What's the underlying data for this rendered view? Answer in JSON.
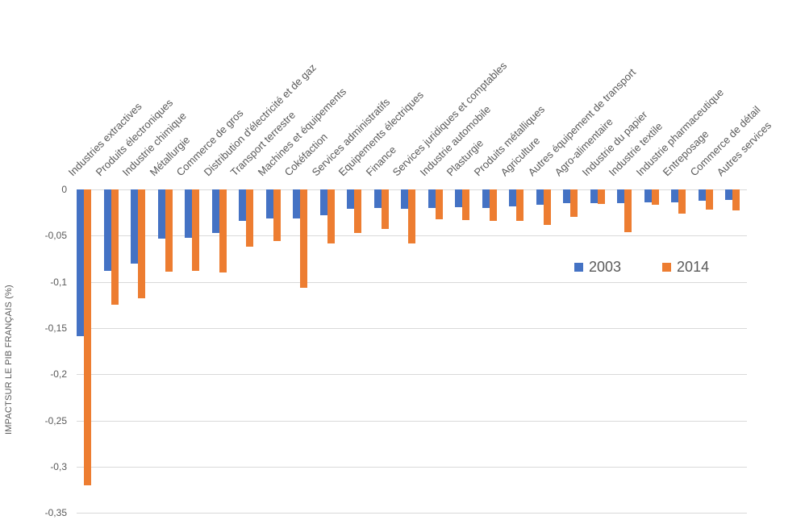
{
  "chart_data": {
    "type": "bar",
    "title": "",
    "xlabel": "",
    "ylabel": "IMPACTSUR LE PIB FRANÇAIS (%)",
    "ylim": [
      -0.35,
      0
    ],
    "ytick_step": 0.05,
    "ytick_labels": [
      "0",
      "-0,05",
      "-0,1",
      "-0,15",
      "-0,2",
      "-0,25",
      "-0,3",
      "-0,35"
    ],
    "grid": true,
    "legend_position": "center-right",
    "categories": [
      "Industries extractives",
      "Produits électroniques",
      "Industrie chimique",
      "Métallurgie",
      "Commerce de gros",
      "Distribution d'électricité et de gaz",
      "Transport terrestre",
      "Machines et équipements",
      "Cokéfaction",
      "Services administratifs",
      "Equipements électriques",
      "Finance",
      "Services juridiques et comptables",
      "Industrie automobile",
      "Plasturgie",
      "Produits métalliques",
      "Agriculture",
      "Autres équipement de transport",
      "Agro-alimentaire",
      "Industrie du papier",
      "Industrie textile",
      "Industrie pharmaceutique",
      "Entreposage",
      "Commerce de détail",
      "Autres services"
    ],
    "series": [
      {
        "name": "2003",
        "color": "#4472C4",
        "values": [
          -0.159,
          -0.088,
          -0.08,
          -0.053,
          -0.052,
          -0.047,
          -0.034,
          -0.031,
          -0.031,
          -0.028,
          -0.021,
          -0.02,
          -0.021,
          -0.02,
          -0.019,
          -0.02,
          -0.018,
          -0.017,
          -0.015,
          -0.015,
          -0.015,
          -0.014,
          -0.014,
          -0.012,
          -0.011
        ]
      },
      {
        "name": "2014",
        "color": "#ED7D31",
        "values": [
          -0.32,
          -0.125,
          -0.118,
          -0.089,
          -0.088,
          -0.09,
          -0.062,
          -0.056,
          -0.106,
          -0.058,
          -0.047,
          -0.043,
          -0.058,
          -0.032,
          -0.033,
          -0.034,
          -0.034,
          -0.038,
          -0.03,
          -0.016,
          -0.046,
          -0.017,
          -0.026,
          -0.022,
          -0.023
        ]
      }
    ]
  }
}
